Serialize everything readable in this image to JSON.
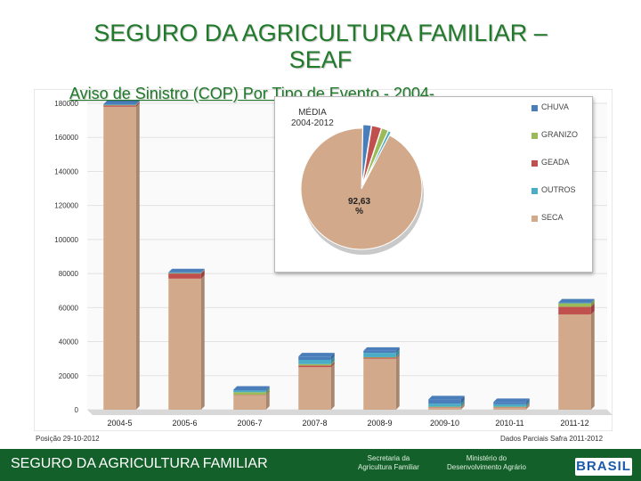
{
  "header": {
    "title_line1": "SEGURO DA AGRICULTURA FAMILIAR –",
    "title_line2": "SEAF",
    "subtitle": "Aviso de Sinistro (COP) Por Tipo de Evento  -  2004-"
  },
  "colors": {
    "chuva": "#4a7ebb",
    "granizo": "#9bbb59",
    "geada": "#c0504d",
    "outros": "#4bacc6",
    "seca": "#d2a98a",
    "brand_green": "#14602a"
  },
  "chart_data": [
    {
      "type": "bar",
      "stacked": true,
      "categories": [
        "2004-5",
        "2005-6",
        "2006-7",
        "2007-8",
        "2008-9",
        "2009-10",
        "2010-11",
        "2011-12"
      ],
      "series": [
        {
          "name": "SECA",
          "values": [
            178000,
            77000,
            8500,
            25000,
            30000,
            1200,
            1200,
            56000
          ]
        },
        {
          "name": "GEADA",
          "values": [
            800,
            3000,
            300,
            1000,
            600,
            300,
            300,
            4500
          ]
        },
        {
          "name": "GRANIZO",
          "values": [
            300,
            300,
            1500,
            800,
            300,
            300,
            300,
            2000
          ]
        },
        {
          "name": "OUTROS",
          "values": [
            200,
            200,
            1000,
            2500,
            2500,
            1800,
            1400,
            300
          ]
        },
        {
          "name": "CHUVA",
          "values": [
            200,
            200,
            500,
            2000,
            1200,
            2500,
            1300,
            200
          ]
        }
      ],
      "yticks": [
        0,
        20000,
        40000,
        60000,
        80000,
        100000,
        120000,
        140000,
        160000,
        180000
      ],
      "ylim": [
        0,
        180000
      ]
    },
    {
      "type": "pie",
      "title_line1": "MÉDIA",
      "title_line2": "2004-2012",
      "slices": [
        {
          "name": "CHUVA",
          "value": 2.2
        },
        {
          "name": "GEADA",
          "value": 2.6
        },
        {
          "name": "GRANIZO",
          "value": 1.8
        },
        {
          "name": "OUTROS",
          "value": 0.77
        },
        {
          "name": "SECA",
          "value": 92.63
        }
      ],
      "label_value": "92,63",
      "label_unit": "%",
      "legend": [
        "CHUVA",
        "GRANIZO",
        "GEADA",
        "OUTROS",
        "SECA"
      ]
    }
  ],
  "footer": {
    "position_note": "Posição 29-10-2012",
    "source_note": "Dados Parciais Safra 2011-2012",
    "program_name": "SEGURO DA AGRICULTURA FAMILIAR",
    "secretaria_line1": "Secretaria da",
    "secretaria_line2": "Agricultura Familiar",
    "ministerio_line1": "Ministério do",
    "ministerio_line2": "Desenvolvimento Agrário",
    "brasil": "BRASIL"
  }
}
